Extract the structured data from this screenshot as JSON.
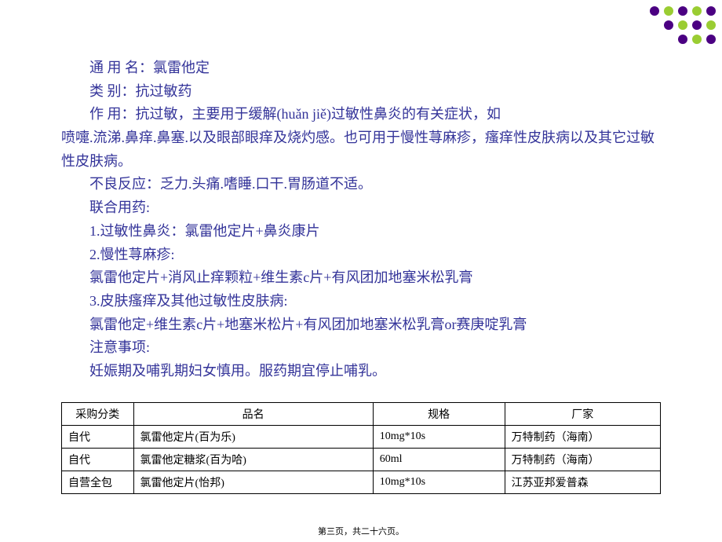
{
  "decoration": {
    "rows": [
      [
        "#4b0082",
        "#9acd32",
        "#4b0082",
        "#9acd32",
        "#4b0082"
      ],
      [
        "#4b0082",
        "#9acd32",
        "#4b0082",
        "#9acd32"
      ],
      [
        "#4b0082",
        "#9acd32",
        "#4b0082"
      ]
    ],
    "dot_size": 12
  },
  "content": {
    "text_color": "#333399",
    "font_size": 18,
    "lines": [
      {
        "text": "通 用  名：氯雷他定",
        "indent": true
      },
      {
        "text": "类      别：抗过敏药",
        "indent": true
      },
      {
        "text": "作      用：抗过敏，主要用于缓解(huǎn jiě)过敏性鼻炎的有关症状，如",
        "indent": true
      },
      {
        "text": "喷嚏.流涕.鼻痒.鼻塞.以及眼部眼痒及烧灼感。也可用于慢性荨麻疹，瘙痒性皮肤病以及其它过敏性皮肤病。",
        "indent": false
      },
      {
        "text": "不良反应：乏力.头痛.嗜睡.口干.胃肠道不适。",
        "indent": true
      },
      {
        "text": "联合用药:",
        "indent": true
      },
      {
        "text": "1.过敏性鼻炎：氯雷他定片+鼻炎康片",
        "indent": true
      },
      {
        "text": "2.慢性荨麻疹:",
        "indent": true
      },
      {
        "text": "氯雷他定片+消风止痒颗粒+维生素c片+有风团加地塞米松乳膏",
        "indent": true
      },
      {
        "text": "3.皮肤瘙痒及其他过敏性皮肤病:",
        "indent": true
      },
      {
        "text": "氯雷他定+维生素c片+地塞米松片+有风团加地塞米松乳膏or赛庚啶乳膏",
        "indent": true
      },
      {
        "text": "注意事项:",
        "indent": true
      },
      {
        "text": "妊娠期及哺乳期妇女慎用。服药期宜停止哺乳。",
        "indent": true
      }
    ]
  },
  "table": {
    "columns": [
      "采购分类",
      "品名",
      "规格",
      "厂家"
    ],
    "rows": [
      [
        "自代",
        "氯雷他定片(百为乐)",
        "10mg*10s",
        "万特制药（海南）"
      ],
      [
        "自代",
        "氯雷他定糖浆(百为哈)",
        "60ml",
        "万特制药（海南）"
      ],
      [
        "自营全包",
        "氯雷他定片(怡邦)",
        "10mg*10s",
        "江苏亚邦爱普森"
      ]
    ]
  },
  "footer": {
    "text": "第三页，共二十六页。"
  }
}
